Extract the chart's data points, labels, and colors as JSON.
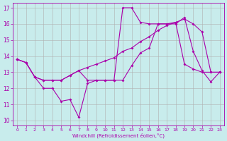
{
  "xlabel": "Windchill (Refroidissement éolien,°C)",
  "background_color": "#c8ecec",
  "grid_color": "#b0b0b0",
  "line_color": "#aa00aa",
  "xlim": [
    -0.5,
    23.5
  ],
  "ylim": [
    9.7,
    17.3
  ],
  "xticks": [
    0,
    1,
    2,
    3,
    4,
    5,
    6,
    7,
    8,
    9,
    10,
    11,
    12,
    13,
    14,
    15,
    16,
    17,
    18,
    19,
    20,
    21,
    22,
    23
  ],
  "yticks": [
    10,
    11,
    12,
    13,
    14,
    15,
    16,
    17
  ],
  "line1_x": [
    0,
    1,
    2,
    3,
    4,
    5,
    6,
    7,
    8,
    9,
    10,
    11,
    12,
    13,
    14,
    15,
    16,
    17,
    18,
    19,
    20,
    21,
    22,
    23
  ],
  "line1_y": [
    13.8,
    13.6,
    12.7,
    12.0,
    12.0,
    11.2,
    11.3,
    10.2,
    12.3,
    12.5,
    12.5,
    12.5,
    12.5,
    13.4,
    14.2,
    14.5,
    16.0,
    16.0,
    16.0,
    16.4,
    14.3,
    13.1,
    12.4,
    13.0
  ],
  "line2_x": [
    0,
    1,
    2,
    3,
    4,
    5,
    6,
    7,
    8,
    9,
    10,
    11,
    12,
    13,
    14,
    15,
    16,
    17,
    18,
    19,
    20,
    21,
    22,
    23
  ],
  "line2_y": [
    13.8,
    13.6,
    12.7,
    12.5,
    12.5,
    12.5,
    12.8,
    13.1,
    13.3,
    13.5,
    13.7,
    13.9,
    14.3,
    14.5,
    14.9,
    15.2,
    15.6,
    15.9,
    16.1,
    16.3,
    16.0,
    15.5,
    13.0,
    13.0
  ],
  "line3_x": [
    0,
    1,
    2,
    3,
    4,
    5,
    6,
    7,
    8,
    9,
    10,
    11,
    12,
    13,
    14,
    15,
    16,
    17,
    18,
    19,
    20,
    21,
    22,
    23
  ],
  "line3_y": [
    13.8,
    13.6,
    12.7,
    12.5,
    12.5,
    12.5,
    12.8,
    13.1,
    12.5,
    12.5,
    12.5,
    12.5,
    17.0,
    17.0,
    16.1,
    16.0,
    16.0,
    16.0,
    16.1,
    13.5,
    13.2,
    13.0,
    13.0,
    13.0
  ]
}
